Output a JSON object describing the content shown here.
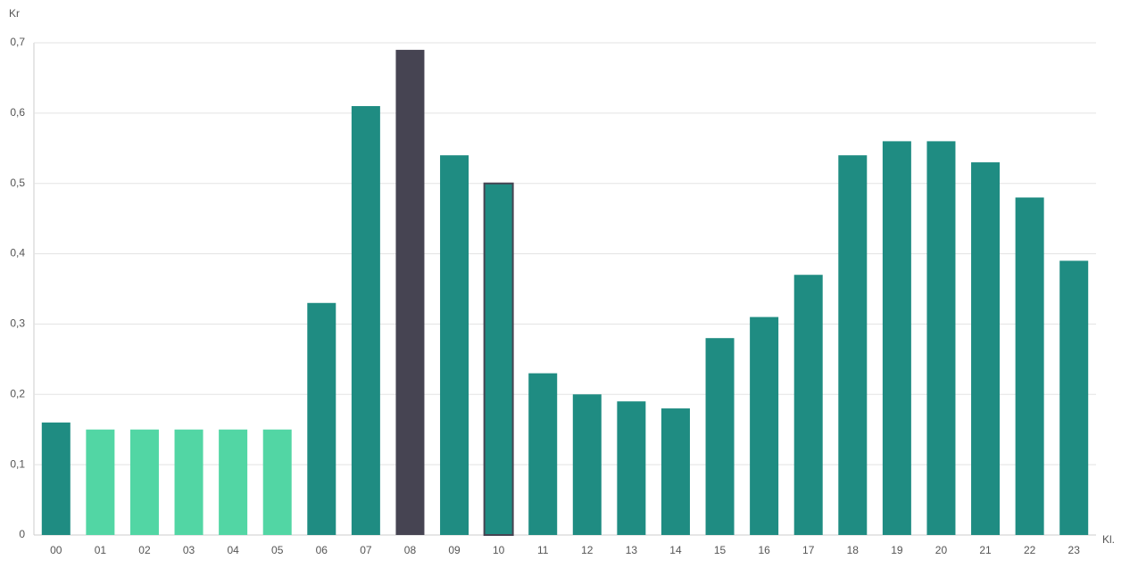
{
  "chart_data": {
    "type": "bar",
    "y_label": "Kr",
    "x_label": "Kl.",
    "categories": [
      "00",
      "01",
      "02",
      "03",
      "04",
      "05",
      "06",
      "07",
      "08",
      "09",
      "10",
      "11",
      "12",
      "13",
      "14",
      "15",
      "16",
      "17",
      "18",
      "19",
      "20",
      "21",
      "22",
      "23"
    ],
    "values": [
      0.16,
      0.15,
      0.15,
      0.15,
      0.15,
      0.15,
      0.33,
      0.61,
      0.69,
      0.54,
      0.5,
      0.23,
      0.2,
      0.19,
      0.18,
      0.28,
      0.31,
      0.37,
      0.54,
      0.56,
      0.56,
      0.53,
      0.48,
      0.39
    ],
    "colors": [
      "#1f8c82",
      "#52d6a4",
      "#52d6a4",
      "#52d6a4",
      "#52d6a4",
      "#52d6a4",
      "#1f8c82",
      "#1f8c82",
      "#464452",
      "#1f8c82",
      "#1f8c82",
      "#1f8c82",
      "#1f8c82",
      "#1f8c82",
      "#1f8c82",
      "#1f8c82",
      "#1f8c82",
      "#1f8c82",
      "#1f8c82",
      "#1f8c82",
      "#1f8c82",
      "#1f8c82",
      "#1f8c82",
      "#1f8c82"
    ],
    "outline": {
      "index": 10,
      "color": "#464452"
    },
    "ylim": [
      0,
      0.7
    ],
    "yticks": [
      0,
      {
        "value": 0.1,
        "label": "0,1"
      },
      {
        "value": 0.2,
        "label": "0,2"
      },
      {
        "value": 0.3,
        "label": "0,3"
      },
      {
        "value": 0.4,
        "label": "0,4"
      },
      {
        "value": 0.5,
        "label": "0,5"
      },
      {
        "value": 0.6,
        "label": "0,6"
      },
      {
        "value": 0.7,
        "label": "0,7"
      }
    ],
    "grid": true
  }
}
